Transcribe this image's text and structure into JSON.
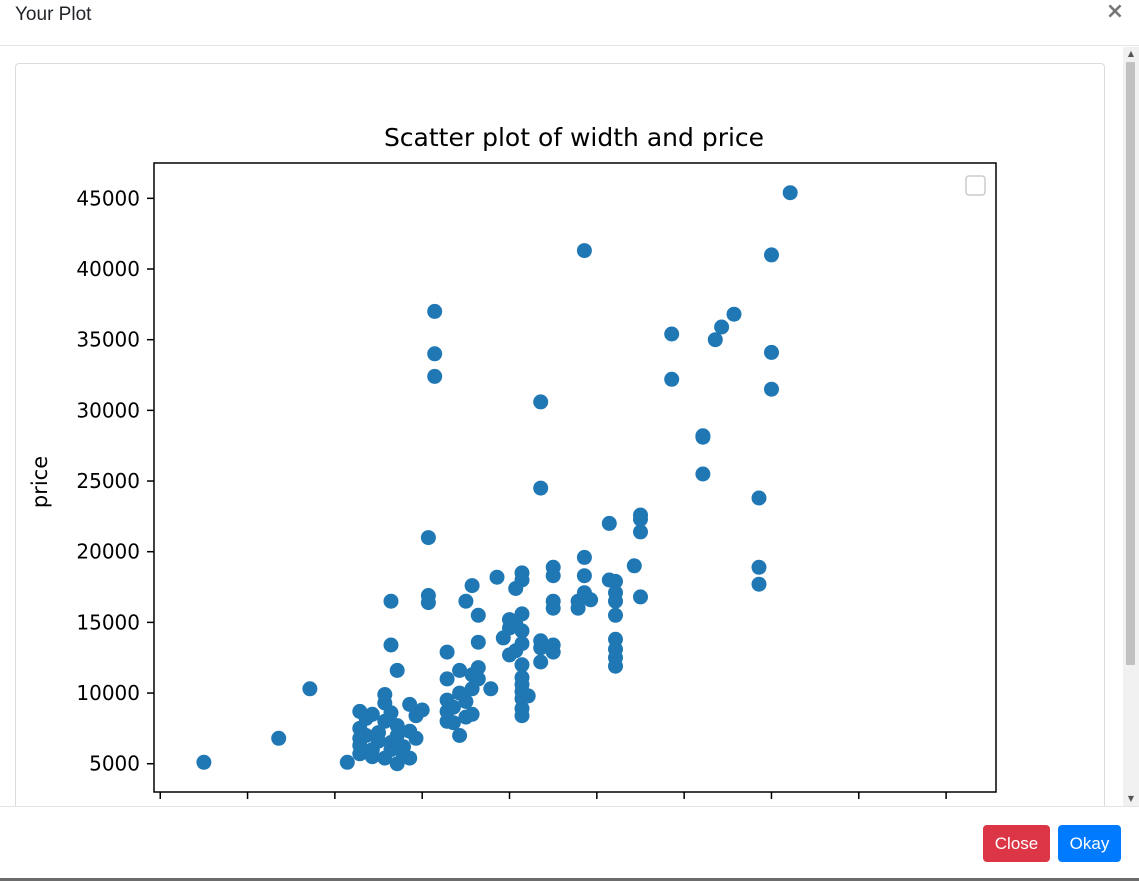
{
  "modal": {
    "title": "Your Plot",
    "close_symbol": "×",
    "close_label": "Close",
    "okay_label": "Okay"
  },
  "icons": {
    "close": "close-icon",
    "scroll_up": "chevron-up-icon",
    "scroll_down": "chevron-down-icon"
  },
  "colors": {
    "marker": "#1f77b4",
    "close_button": "#dc3545",
    "okay_button": "#007bff"
  },
  "chart_data": {
    "type": "scatter",
    "title": "Scatter plot of width and price",
    "xlabel": "",
    "ylabel": "price",
    "xlim": [
      60.0,
      73.5
    ],
    "ylim": [
      3000,
      47500
    ],
    "yticks": [
      5000,
      10000,
      15000,
      20000,
      25000,
      30000,
      35000,
      40000,
      45000
    ],
    "ytick_labels": [
      "5000",
      "10000",
      "15000",
      "20000",
      "25000",
      "30000",
      "35000",
      "40000",
      "45000"
    ],
    "xticks": [
      60.1,
      61.5,
      62.9,
      64.3,
      65.7,
      67.1,
      68.5,
      69.9,
      71.3,
      72.7
    ],
    "grid": false,
    "legend": "top-right, empty",
    "points": [
      [
        60.8,
        5100
      ],
      [
        62.0,
        6800
      ],
      [
        62.5,
        10300
      ],
      [
        63.1,
        5100
      ],
      [
        63.3,
        8700
      ],
      [
        63.3,
        7500
      ],
      [
        63.3,
        6800
      ],
      [
        63.3,
        6300
      ],
      [
        63.3,
        5700
      ],
      [
        63.4,
        8200
      ],
      [
        63.4,
        7000
      ],
      [
        63.5,
        8500
      ],
      [
        63.5,
        6000
      ],
      [
        63.5,
        5500
      ],
      [
        63.6,
        7200
      ],
      [
        63.6,
        6600
      ],
      [
        63.7,
        9900
      ],
      [
        63.7,
        9300
      ],
      [
        63.7,
        8000
      ],
      [
        63.7,
        5400
      ],
      [
        63.8,
        16500
      ],
      [
        63.8,
        13400
      ],
      [
        63.8,
        8600
      ],
      [
        63.8,
        6500
      ],
      [
        63.8,
        6000
      ],
      [
        63.9,
        11600
      ],
      [
        63.9,
        7700
      ],
      [
        63.9,
        7000
      ],
      [
        63.9,
        5000
      ],
      [
        64.0,
        6200
      ],
      [
        64.0,
        5600
      ],
      [
        64.1,
        7300
      ],
      [
        64.1,
        5400
      ],
      [
        64.1,
        9200
      ],
      [
        64.2,
        8400
      ],
      [
        64.2,
        6800
      ],
      [
        64.3,
        8800
      ],
      [
        64.4,
        21000
      ],
      [
        64.4,
        16900
      ],
      [
        64.4,
        16400
      ],
      [
        64.5,
        37000
      ],
      [
        64.5,
        34000
      ],
      [
        64.5,
        32400
      ],
      [
        64.7,
        12900
      ],
      [
        64.7,
        11000
      ],
      [
        64.7,
        9500
      ],
      [
        64.7,
        8700
      ],
      [
        64.7,
        8000
      ],
      [
        64.8,
        9000
      ],
      [
        64.8,
        7900
      ],
      [
        64.9,
        11600
      ],
      [
        64.9,
        10000
      ],
      [
        64.9,
        7000
      ],
      [
        65.0,
        9400
      ],
      [
        65.0,
        8300
      ],
      [
        65.0,
        16500
      ],
      [
        65.1,
        17600
      ],
      [
        65.1,
        11300
      ],
      [
        65.1,
        10300
      ],
      [
        65.1,
        8500
      ],
      [
        65.2,
        15500
      ],
      [
        65.2,
        13600
      ],
      [
        65.2,
        11800
      ],
      [
        65.2,
        11000
      ],
      [
        65.4,
        10300
      ],
      [
        65.5,
        18200
      ],
      [
        65.6,
        13900
      ],
      [
        65.7,
        15200
      ],
      [
        65.7,
        14600
      ],
      [
        65.7,
        12700
      ],
      [
        65.8,
        17400
      ],
      [
        65.8,
        14900
      ],
      [
        65.8,
        13000
      ],
      [
        65.9,
        18500
      ],
      [
        65.9,
        18000
      ],
      [
        65.9,
        15600
      ],
      [
        65.9,
        14400
      ],
      [
        65.9,
        13500
      ],
      [
        65.9,
        12000
      ],
      [
        65.9,
        11100
      ],
      [
        65.9,
        10600
      ],
      [
        65.9,
        10100
      ],
      [
        65.9,
        9600
      ],
      [
        65.9,
        8900
      ],
      [
        65.9,
        8400
      ],
      [
        66.0,
        9800
      ],
      [
        66.2,
        30600
      ],
      [
        66.2,
        24500
      ],
      [
        66.2,
        13700
      ],
      [
        66.2,
        13200
      ],
      [
        66.2,
        12200
      ],
      [
        66.4,
        18900
      ],
      [
        66.4,
        18300
      ],
      [
        66.4,
        16500
      ],
      [
        66.4,
        16000
      ],
      [
        66.4,
        13400
      ],
      [
        66.4,
        12900
      ],
      [
        66.8,
        16500
      ],
      [
        66.8,
        16000
      ],
      [
        66.9,
        41300
      ],
      [
        66.9,
        19600
      ],
      [
        66.9,
        18300
      ],
      [
        66.9,
        17100
      ],
      [
        67.0,
        16600
      ],
      [
        67.3,
        22000
      ],
      [
        67.3,
        18000
      ],
      [
        67.4,
        17900
      ],
      [
        67.4,
        17100
      ],
      [
        67.4,
        16500
      ],
      [
        67.4,
        15500
      ],
      [
        67.4,
        13800
      ],
      [
        67.4,
        13100
      ],
      [
        67.4,
        12500
      ],
      [
        67.4,
        11900
      ],
      [
        67.7,
        19000
      ],
      [
        67.8,
        22600
      ],
      [
        67.8,
        22300
      ],
      [
        67.8,
        21400
      ],
      [
        67.8,
        16800
      ],
      [
        68.3,
        35400
      ],
      [
        68.3,
        32200
      ],
      [
        68.8,
        28200
      ],
      [
        68.8,
        28100
      ],
      [
        68.8,
        25500
      ],
      [
        69.0,
        35000
      ],
      [
        69.1,
        35900
      ],
      [
        69.3,
        36800
      ],
      [
        69.7,
        23800
      ],
      [
        69.7,
        18900
      ],
      [
        69.7,
        17700
      ],
      [
        69.9,
        41000
      ],
      [
        69.9,
        34100
      ],
      [
        69.9,
        31500
      ],
      [
        70.2,
        45400
      ]
    ]
  }
}
